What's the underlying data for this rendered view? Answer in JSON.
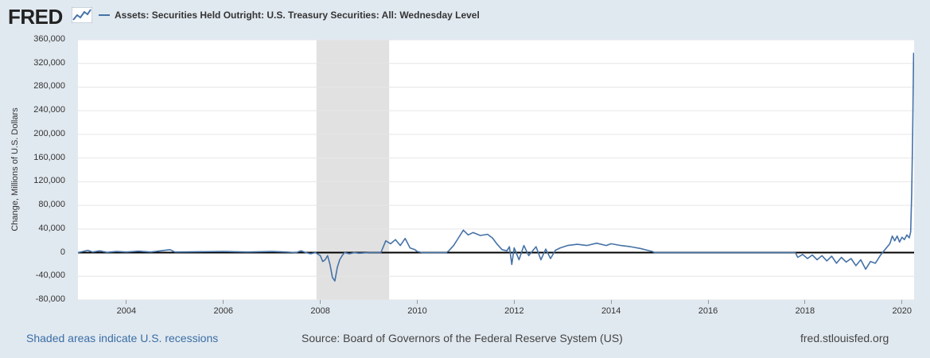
{
  "header": {
    "logo_text": "FRED",
    "logo_icon": "fred-chart-icon",
    "series_label": "Assets: Securities Held Outright: U.S. Treasury Securities: All: Wednesday Level"
  },
  "footer": {
    "recession_note": "Shaded areas indicate U.S. recessions",
    "source": "Source: Board of Governors of the Federal Reserve System (US)",
    "site": "fred.stlouisfed.org"
  },
  "colors": {
    "series": "#4572a7",
    "recession": "#e1e1e1",
    "zero_line": "#000000"
  },
  "chart_data": {
    "type": "line",
    "ylabel": "Change, Millions of U.S. Dollars",
    "ylim": [
      -80000,
      360000
    ],
    "xlim": [
      2003.0,
      2020.25
    ],
    "yticks": [
      -80000,
      -40000,
      0,
      40000,
      80000,
      120000,
      160000,
      200000,
      240000,
      280000,
      320000,
      360000
    ],
    "ytick_labels": [
      "-80,000",
      "-40,000",
      "0",
      "40,000",
      "80,000",
      "120,000",
      "160,000",
      "200,000",
      "240,000",
      "280,000",
      "320,000",
      "360,000"
    ],
    "xticks": [
      2004,
      2006,
      2008,
      2010,
      2012,
      2014,
      2016,
      2018,
      2020
    ],
    "xtick_labels": [
      "2004",
      "2006",
      "2008",
      "2010",
      "2012",
      "2014",
      "2016",
      "2018",
      "2020"
    ],
    "recessions": [
      [
        2007.92,
        2009.42
      ]
    ],
    "grid": true,
    "series": [
      {
        "values": [
          [
            2003.0,
            0
          ],
          [
            2003.1,
            2000
          ],
          [
            2003.2,
            4000
          ],
          [
            2003.3,
            1000
          ],
          [
            2003.45,
            3000
          ],
          [
            2003.6,
            500
          ],
          [
            2003.8,
            2000
          ],
          [
            2004.0,
            1000
          ],
          [
            2004.25,
            2500
          ],
          [
            2004.5,
            1000
          ],
          [
            2004.75,
            3500
          ],
          [
            2004.9,
            5000
          ],
          [
            2005.0,
            1000
          ],
          [
            2005.5,
            1500
          ],
          [
            2006.0,
            2000
          ],
          [
            2006.5,
            1000
          ],
          [
            2007.0,
            2000
          ],
          [
            2007.3,
            1000
          ],
          [
            2007.5,
            0
          ],
          [
            2007.6,
            3000
          ],
          [
            2007.7,
            0
          ],
          [
            2007.8,
            -2000
          ],
          [
            2007.9,
            0
          ],
          [
            2008.0,
            -5000
          ],
          [
            2008.05,
            -15000
          ],
          [
            2008.1,
            -12000
          ],
          [
            2008.15,
            -5000
          ],
          [
            2008.2,
            -20000
          ],
          [
            2008.25,
            -42000
          ],
          [
            2008.3,
            -48000
          ],
          [
            2008.35,
            -25000
          ],
          [
            2008.4,
            -12000
          ],
          [
            2008.45,
            -5000
          ],
          [
            2008.5,
            0
          ],
          [
            2008.6,
            -2000
          ],
          [
            2008.7,
            0
          ],
          [
            2008.8,
            -1000
          ],
          [
            2009.0,
            0
          ],
          [
            2009.1,
            0
          ],
          [
            2009.25,
            0
          ],
          [
            2009.35,
            20000
          ],
          [
            2009.45,
            15000
          ],
          [
            2009.55,
            22000
          ],
          [
            2009.65,
            12000
          ],
          [
            2009.75,
            24000
          ],
          [
            2009.85,
            8000
          ],
          [
            2009.95,
            5000
          ],
          [
            2010.0,
            2000
          ],
          [
            2010.1,
            0
          ],
          [
            2010.3,
            0
          ],
          [
            2010.6,
            0
          ],
          [
            2010.65,
            3000
          ],
          [
            2010.75,
            12000
          ],
          [
            2010.85,
            25000
          ],
          [
            2010.95,
            38000
          ],
          [
            2011.05,
            30000
          ],
          [
            2011.15,
            34000
          ],
          [
            2011.3,
            29000
          ],
          [
            2011.45,
            31000
          ],
          [
            2011.55,
            25000
          ],
          [
            2011.65,
            14000
          ],
          [
            2011.75,
            5000
          ],
          [
            2011.85,
            3000
          ],
          [
            2011.9,
            10000
          ],
          [
            2011.95,
            -20000
          ],
          [
            2012.0,
            8000
          ],
          [
            2012.1,
            -12000
          ],
          [
            2012.2,
            12000
          ],
          [
            2012.3,
            -5000
          ],
          [
            2012.45,
            10000
          ],
          [
            2012.55,
            -12000
          ],
          [
            2012.65,
            6000
          ],
          [
            2012.75,
            -10000
          ],
          [
            2012.85,
            4000
          ],
          [
            2012.95,
            8000
          ],
          [
            2013.1,
            12000
          ],
          [
            2013.3,
            14000
          ],
          [
            2013.5,
            12000
          ],
          [
            2013.7,
            16000
          ],
          [
            2013.9,
            12000
          ],
          [
            2014.0,
            15000
          ],
          [
            2014.2,
            12000
          ],
          [
            2014.4,
            10000
          ],
          [
            2014.6,
            7000
          ],
          [
            2014.75,
            4000
          ],
          [
            2014.85,
            2000
          ],
          [
            2014.9,
            0
          ],
          [
            2015.5,
            0
          ],
          [
            2016.0,
            0
          ],
          [
            2016.5,
            0
          ],
          [
            2017.0,
            0
          ],
          [
            2017.5,
            0
          ],
          [
            2017.8,
            0
          ],
          [
            2017.85,
            -8000
          ],
          [
            2017.95,
            -3000
          ],
          [
            2018.05,
            -10000
          ],
          [
            2018.15,
            -4000
          ],
          [
            2018.25,
            -12000
          ],
          [
            2018.35,
            -5000
          ],
          [
            2018.45,
            -14000
          ],
          [
            2018.55,
            -6000
          ],
          [
            2018.65,
            -18000
          ],
          [
            2018.75,
            -8000
          ],
          [
            2018.85,
            -16000
          ],
          [
            2018.95,
            -10000
          ],
          [
            2019.05,
            -22000
          ],
          [
            2019.15,
            -12000
          ],
          [
            2019.25,
            -28000
          ],
          [
            2019.35,
            -15000
          ],
          [
            2019.45,
            -18000
          ],
          [
            2019.55,
            -5000
          ],
          [
            2019.65,
            5000
          ],
          [
            2019.75,
            15000
          ],
          [
            2019.8,
            28000
          ],
          [
            2019.85,
            20000
          ],
          [
            2019.9,
            28000
          ],
          [
            2019.95,
            18000
          ],
          [
            2020.0,
            26000
          ],
          [
            2020.05,
            22000
          ],
          [
            2020.1,
            30000
          ],
          [
            2020.15,
            25000
          ],
          [
            2020.18,
            35000
          ],
          [
            2020.2,
            100000
          ],
          [
            2020.22,
            200000
          ],
          [
            2020.24,
            338000
          ]
        ]
      }
    ]
  }
}
